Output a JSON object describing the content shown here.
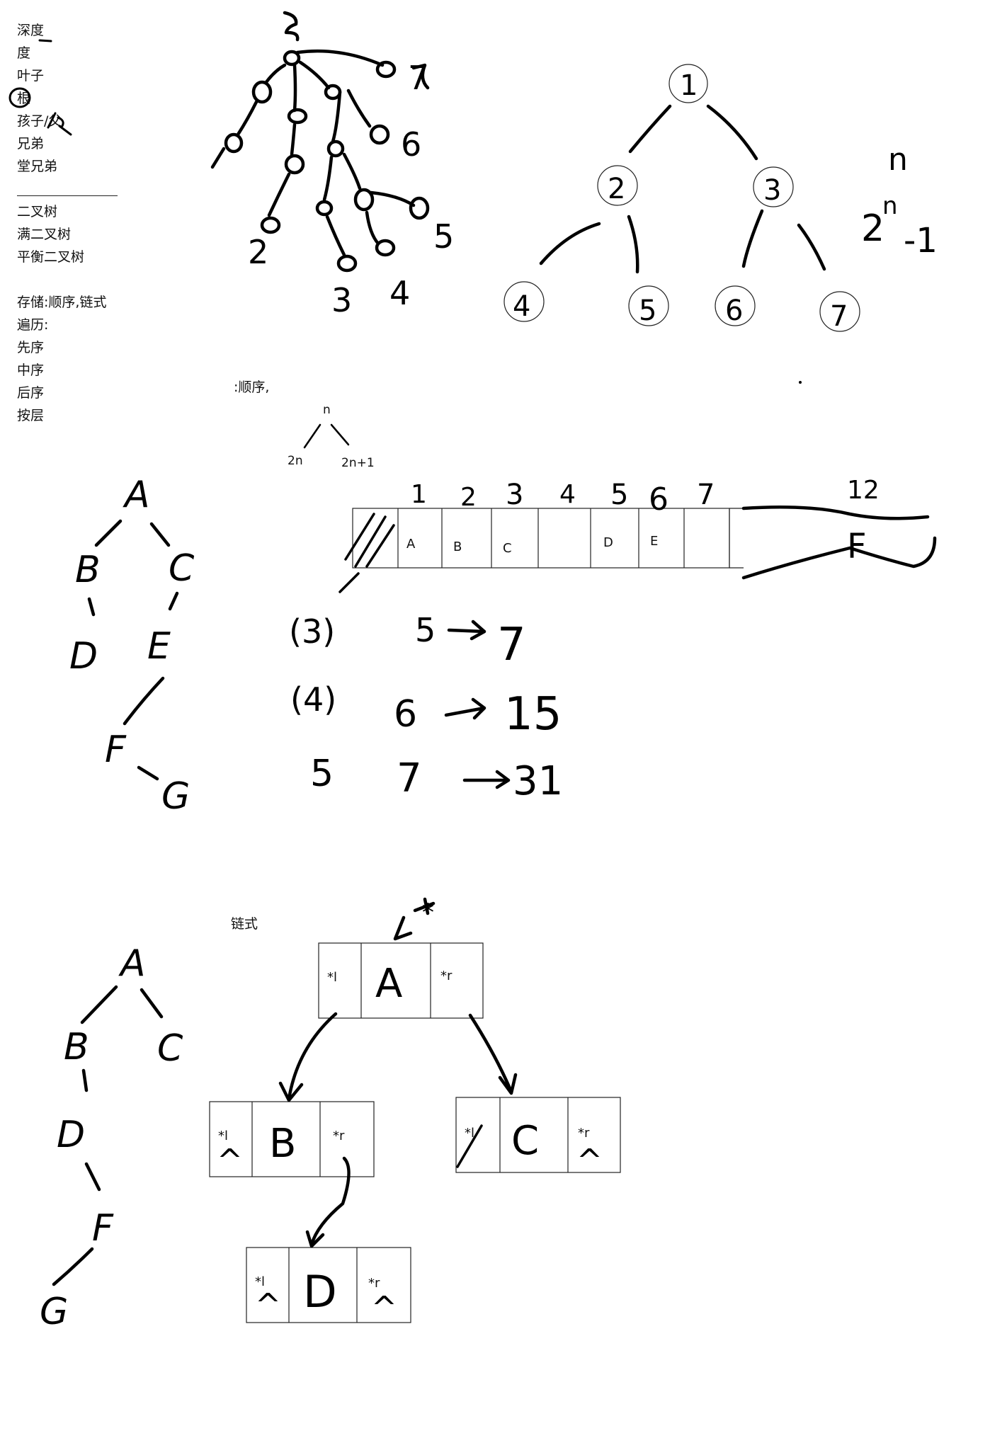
{
  "concepts": [
    "深度",
    "度",
    "叶子",
    "根",
    "孩子/父",
    "兄弟",
    "堂兄弟"
  ],
  "binary_trees": [
    "二叉树",
    "满二叉树",
    "平衡二叉树"
  ],
  "storage": "存储:顺序,链式",
  "traversal": "遍历:",
  "traversals": [
    "先序",
    "中序",
    "后序",
    "按层"
  ],
  "sequential_label": ":顺序,",
  "index_formula": {
    "parent": "n",
    "left": "2n",
    "right": "2n+1"
  },
  "full_tree": {
    "nodes": [
      "1",
      "2",
      "3",
      "4",
      "5",
      "6",
      "7"
    ],
    "formula_base": "2",
    "formula_exp": "n",
    "formula_rest": "-1",
    "level": "n"
  },
  "general_tree_labels": [
    "2",
    "3",
    "4",
    "5",
    "6",
    "7"
  ],
  "array": {
    "indices": [
      "1",
      "2",
      "3",
      "4",
      "5",
      "6",
      "7"
    ],
    "cells": [
      "A",
      "B",
      "C",
      "",
      "D",
      "E",
      ""
    ],
    "extra_index": "12",
    "extra_value": "F"
  },
  "growth": [
    {
      "level": "(3)",
      "from": "5",
      "to": "7"
    },
    {
      "level": "(4)",
      "from": "6",
      "to": "15"
    },
    {
      "level": "5",
      "from": "7",
      "to": "31"
    }
  ],
  "tree1": [
    "A",
    "B",
    "C",
    "D",
    "E",
    "F",
    "G"
  ],
  "linked_label": "链式",
  "tree2": [
    "A",
    "B",
    "C",
    "D",
    "F",
    "G"
  ],
  "linked_nodes": [
    {
      "left": "*l",
      "value": "A",
      "right": "*r"
    },
    {
      "left": "*l",
      "value": "B",
      "right": "*r"
    },
    {
      "left": "*l",
      "value": "C",
      "right": "*r"
    },
    {
      "left": "*l",
      "value": "D",
      "right": "*r"
    }
  ],
  "null_mark": "^",
  "pointer_mark": "*"
}
